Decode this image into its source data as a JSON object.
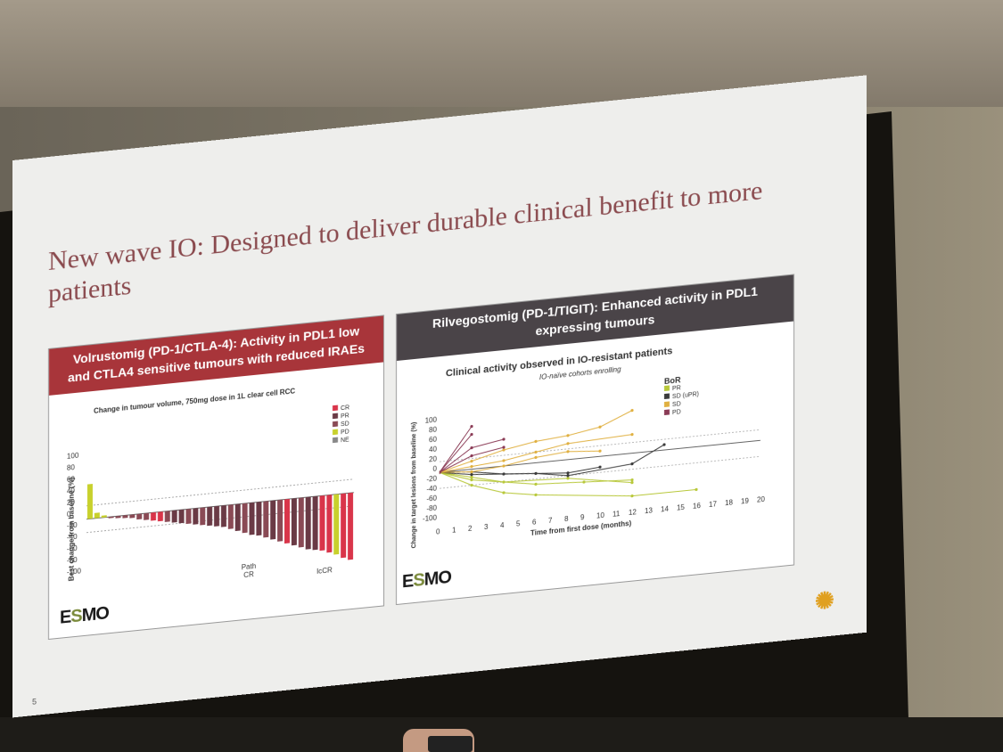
{
  "slide": {
    "title": "New wave IO: Designed to deliver durable clinical benefit to more patients",
    "page_number": "5"
  },
  "left_panel": {
    "header": "Volrustomig (PD-1/CTLA-4): Activity in PDL1 low and CTLA4 sensitive tumours with reduced IRAEs",
    "header_color": "#a8353a",
    "subtitle": "Change in tumour volume, 750mg dose in 1L clear cell RCC",
    "ylabel": "Best change from baseline (%)",
    "yticks": [
      "100",
      "80",
      "60",
      "40",
      "20",
      "0",
      "-20",
      "-40",
      "-60",
      "-80",
      "-100"
    ],
    "legend": [
      {
        "label": "CR",
        "color": "#d9354a"
      },
      {
        "label": "PR",
        "color": "#6a3a45"
      },
      {
        "label": "SD",
        "color": "#8a4a55"
      },
      {
        "label": "PD",
        "color": "#c8d12c"
      },
      {
        "label": "NE",
        "color": "#888888"
      }
    ],
    "annotations": [
      "Path CR",
      "IcCR"
    ],
    "logo": "ESMO"
  },
  "right_panel": {
    "header": "Rilvegostomig (PD-1/TIGIT): Enhanced activity in PDL1 expressing tumours",
    "header_color": "#4a4448",
    "subtitle": "Clinical activity observed in IO-resistant patients",
    "subtitle2": "IO-naïve cohorts enrolling",
    "ylabel": "Change in target lesions from baseline (%)",
    "xlabel": "Time from first dose (months)",
    "yticks": [
      "100",
      "80",
      "60",
      "40",
      "20",
      "0",
      "-20",
      "-40",
      "-60",
      "-80",
      "-100"
    ],
    "xticks": [
      "0",
      "1",
      "2",
      "3",
      "4",
      "5",
      "6",
      "7",
      "8",
      "9",
      "10",
      "11",
      "12",
      "13",
      "14",
      "15",
      "16",
      "17",
      "18",
      "19",
      "20"
    ],
    "legend_title": "BoR",
    "legend": [
      {
        "label": "PR",
        "color": "#b8c83a"
      },
      {
        "label": "SD (uPR)",
        "color": "#3a3a3a"
      },
      {
        "label": "SD",
        "color": "#e0b040"
      },
      {
        "label": "PD",
        "color": "#8a3a55"
      }
    ],
    "logo": "ESMO"
  },
  "chart_data": [
    {
      "type": "bar",
      "title": "Change in tumour volume, 750mg dose in 1L clear cell RCC",
      "ylabel": "Best change from baseline (%)",
      "ylim": [
        -100,
        100
      ],
      "values": [
        52,
        8,
        3,
        -2,
        -3,
        -4,
        -5,
        -8,
        -10,
        -12,
        -14,
        -16,
        -18,
        -20,
        -22,
        -24,
        -26,
        -28,
        -30,
        -32,
        -36,
        -40,
        -44,
        -48,
        -50,
        -54,
        -58,
        -62,
        -66,
        -70,
        -74,
        -78,
        -80,
        -82,
        -86,
        -90,
        -96,
        -100
      ],
      "colors": [
        "#c8d12c",
        "#c8d12c",
        "#c8d12c",
        "#8a4a55",
        "#8a4a55",
        "#8a4a55",
        "#8a4a55",
        "#8a4a55",
        "#8a4a55",
        "#d9354a",
        "#d9354a",
        "#8a4a55",
        "#6a3a45",
        "#6a3a45",
        "#8a4a55",
        "#6a3a45",
        "#8a4a55",
        "#6a3a45",
        "#6a3a45",
        "#6a3a45",
        "#8a4a55",
        "#6a3a45",
        "#8a4a55",
        "#6a3a45",
        "#6a3a45",
        "#8a4a55",
        "#6a3a45",
        "#8a4a55",
        "#d9354a",
        "#6a3a45",
        "#8a4a55",
        "#6a3a45",
        "#6a3a45",
        "#d9354a",
        "#d9354a",
        "#c8d12c",
        "#d9354a",
        "#d9354a"
      ]
    },
    {
      "type": "line",
      "title": "Clinical activity observed in IO-resistant patients",
      "xlabel": "Time from first dose (months)",
      "ylabel": "Change in target lesions from baseline (%)",
      "xlim": [
        0,
        20
      ],
      "ylim": [
        -100,
        100
      ],
      "series": [
        {
          "name": "PR",
          "values": [
            [
              0,
              0
            ],
            [
              2,
              -30
            ],
            [
              4,
              -50
            ],
            [
              6,
              -60
            ],
            [
              12,
              -80
            ],
            [
              16,
              -80
            ]
          ]
        },
        {
          "name": "PR",
          "values": [
            [
              0,
              0
            ],
            [
              2,
              -20
            ],
            [
              6,
              -40
            ],
            [
              9,
              -45
            ],
            [
              12,
              -50
            ]
          ]
        },
        {
          "name": "PR",
          "values": [
            [
              0,
              0
            ],
            [
              2,
              -15
            ],
            [
              4,
              -30
            ],
            [
              8,
              -35
            ],
            [
              12,
              -55
            ]
          ]
        },
        {
          "name": "SD (uPR)",
          "values": [
            [
              0,
              0
            ],
            [
              2,
              -10
            ],
            [
              6,
              -20
            ],
            [
              8,
              -30
            ],
            [
              12,
              -20
            ],
            [
              14,
              10
            ]
          ]
        },
        {
          "name": "SD (uPR)",
          "values": [
            [
              0,
              0
            ],
            [
              2,
              -5
            ],
            [
              4,
              -15
            ],
            [
              8,
              -25
            ],
            [
              10,
              -20
            ]
          ]
        },
        {
          "name": "SD",
          "values": [
            [
              0,
              0
            ],
            [
              2,
              15
            ],
            [
              4,
              30
            ],
            [
              6,
              40
            ],
            [
              8,
              45
            ],
            [
              10,
              55
            ],
            [
              12,
              80
            ]
          ]
        },
        {
          "name": "SD",
          "values": [
            [
              0,
              0
            ],
            [
              2,
              5
            ],
            [
              4,
              10
            ],
            [
              6,
              20
            ],
            [
              8,
              30
            ],
            [
              12,
              35
            ]
          ]
        },
        {
          "name": "SD",
          "values": [
            [
              0,
              0
            ],
            [
              2,
              -5
            ],
            [
              4,
              0
            ],
            [
              6,
              10
            ],
            [
              8,
              15
            ],
            [
              10,
              10
            ]
          ]
        },
        {
          "name": "PD",
          "values": [
            [
              0,
              0
            ],
            [
              2,
              80
            ]
          ]
        },
        {
          "name": "PD",
          "values": [
            [
              0,
              0
            ],
            [
              2,
              65
            ]
          ]
        },
        {
          "name": "PD",
          "values": [
            [
              0,
              0
            ],
            [
              2,
              40
            ],
            [
              4,
              50
            ]
          ]
        },
        {
          "name": "PD",
          "values": [
            [
              0,
              0
            ],
            [
              2,
              25
            ],
            [
              4,
              35
            ]
          ]
        }
      ]
    }
  ]
}
